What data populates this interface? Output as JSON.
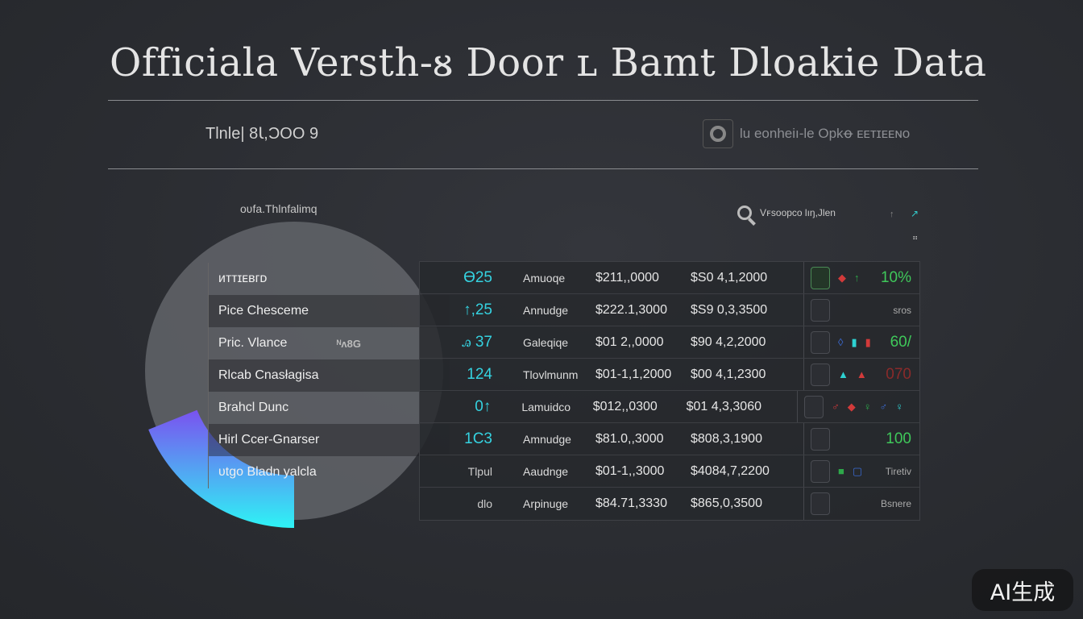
{
  "header": {
    "title": "Officiala Versth-ᴕ Door ʟ Bamt Dloakie Data",
    "subtitle": "Tlnle| 8Ꙇ,ϽOO 9",
    "brand": "lu eonheiı-le Opkꝋ ᴇᴇᴛɪᴇᴇɴᴏ"
  },
  "toolbar": {
    "section_label": "oʋfa.Thlnfalimq",
    "search_label": "Vꜰsoopco lıŋ,Jlen",
    "sort_up": "↑",
    "sort_active": "↗",
    "menu": "⠶"
  },
  "ring": {
    "colors": {
      "start": "#7a52f0",
      "end": "#2ef3f5",
      "disc": "#6a6c72"
    }
  },
  "left_list": [
    {
      "label": "ᴎᴛᴛɪᴇʙᴦᴅ",
      "extra": ""
    },
    {
      "label": "Pice Chesceme",
      "extra": ""
    },
    {
      "label": "Pric. Vlance",
      "extra": "ᴺᴧ8G"
    },
    {
      "label": "Rlcab Cnasłagisa",
      "extra": ""
    },
    {
      "label": "Brahcl Dunc",
      "extra": ""
    },
    {
      "label": "Hirl Ccer-Gnarser",
      "extra": ""
    },
    {
      "label": "ᴜtgo Bladn yalcla",
      "extra": ""
    }
  ],
  "table": {
    "rows": [
      {
        "num": "ϴ25",
        "name": "Amuoqe",
        "v1": "$211,,0000",
        "v2": "$S0 4,1,2000",
        "markers": [
          "◆",
          "↑"
        ],
        "status": "10%",
        "status_color": "#3fc85a",
        "thumb": "g"
      },
      {
        "num": "↑,25",
        "name": "Annudge",
        "v1": "$222.1,3000",
        "v2": "$S9 0,3,3500",
        "markers": [],
        "status": "sros",
        "status_color": "#aaaaaa",
        "thumb": ""
      },
      {
        "num": "ꭿ 37",
        "name": "Galeqiqe",
        "v1": "$01 2,,0000",
        "v2": "$90 4,2,2000",
        "markers": [
          "◊",
          "▮",
          "▮"
        ],
        "status": "60/",
        "status_color": "#3fc85a",
        "thumb": ""
      },
      {
        "num": "124",
        "name": "Tlovlmunm",
        "v1": "$01-1,1,2000",
        "v2": "$00 4,1,2300",
        "markers": [
          "▲",
          "▲"
        ],
        "status": "070",
        "status_color": "#8a2a2a",
        "thumb": ""
      },
      {
        "num": "0↑",
        "name": "Lamuidco",
        "v1": "$012,,0300",
        "v2": "$01 4,3,3060",
        "markers": [
          "♂",
          "◆",
          "♀",
          "♂",
          "♀"
        ],
        "status": "",
        "status_color": "#d23a3a",
        "thumb": ""
      },
      {
        "num": "1C3",
        "name": "Amnudge",
        "v1": "$81.0,,3000",
        "v2": "$808,3,1900",
        "markers": [],
        "status": "100",
        "status_color": "#3fc85a",
        "thumb": ""
      },
      {
        "num": "Tlpul",
        "name": "Aaudnge",
        "v1": "$01-1,,3000",
        "v2": "$4084,7,2200",
        "markers": [
          "■",
          "▢"
        ],
        "status": "Tiretiv",
        "status_color": "#aaaaaa",
        "thumb": ""
      },
      {
        "num": "dlo",
        "name": "Arpinuge",
        "v1": "$84.71,3330",
        "v2": "$865,0,3500",
        "markers": [],
        "status": "Bsnere",
        "status_color": "#aaaaaa",
        "thumb": ""
      }
    ]
  },
  "watermark": "AI生成"
}
